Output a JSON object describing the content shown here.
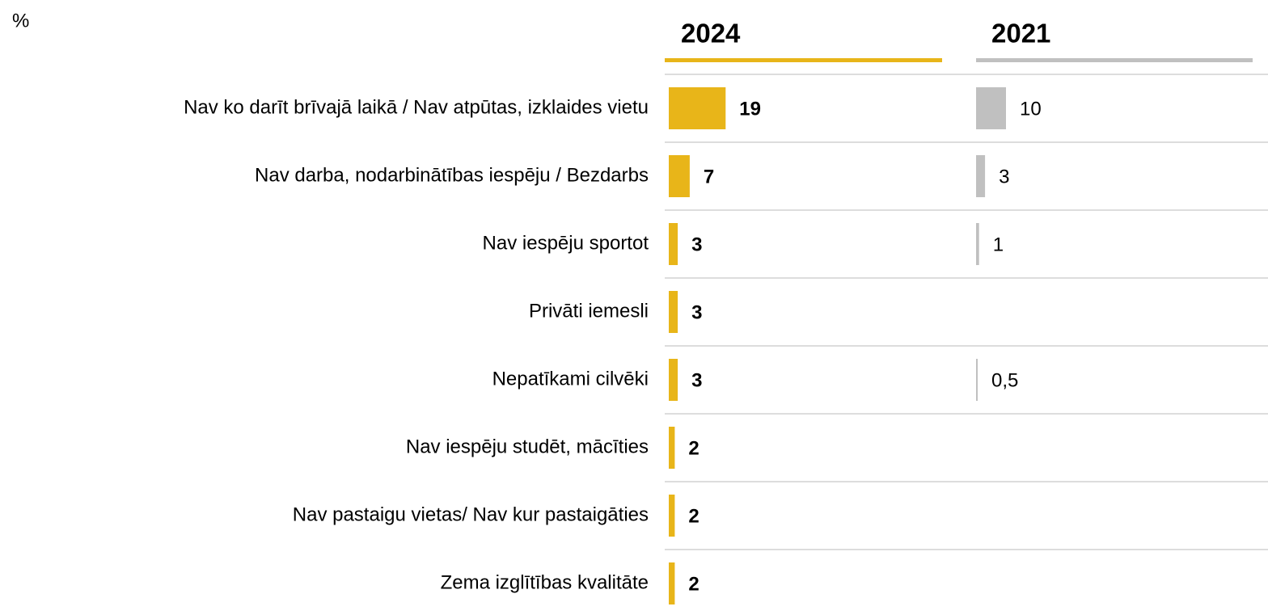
{
  "chart_data": {
    "type": "bar",
    "orientation": "horizontal",
    "unit": "%",
    "categories": [
      "Nav ko darīt brīvajā laikā / Nav atpūtas, izklaides vietu",
      "Nav darba, nodarbinātības iespēju / Bezdarbs",
      "Nav iespēju sportot",
      "Privāti iemesli",
      "Nepatīkami cilvēki",
      "Nav iespēju studēt, mācīties",
      "Nav pastaigu vietas/ Nav kur pastaigāties",
      "Zema izglītības kvalitāte"
    ],
    "series": [
      {
        "name": "2024",
        "color": "#e8b519",
        "values": [
          19,
          7,
          3,
          3,
          3,
          2,
          2,
          2
        ]
      },
      {
        "name": "2021",
        "color": "#c0c0c0",
        "values": [
          10,
          3,
          1,
          null,
          0.5,
          null,
          null,
          null
        ],
        "value_labels": [
          "10",
          "3",
          "1",
          null,
          "0,5",
          null,
          null,
          null
        ]
      }
    ]
  }
}
